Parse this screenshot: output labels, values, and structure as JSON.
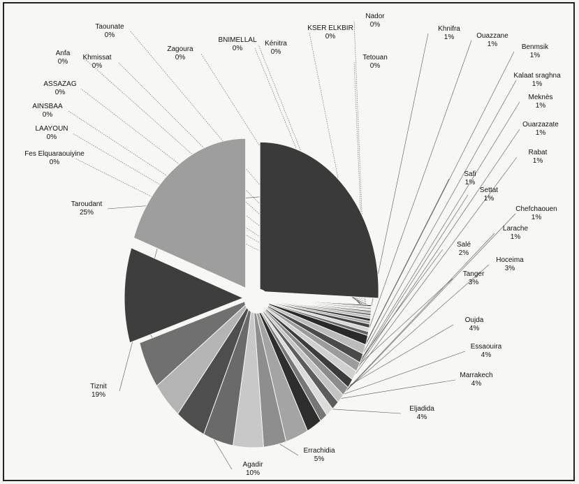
{
  "chart_data": {
    "type": "pie",
    "title": "",
    "legend": "none",
    "categories": [
      "Taroudant",
      "Fes Elquaraouiyine",
      "LAAYOUN",
      "AINSBAA",
      "ASSAZAG",
      "Anfa",
      "Khmissat",
      "Taounate",
      "Zagoura",
      "BNIMELLAL",
      "Kénitra",
      "KSER ELKBIR",
      "Nador",
      "Tetouan",
      "Khnifra",
      "Ouazzane",
      "Benmsik",
      "Kalaat sraghna",
      "Meknès",
      "Ouarzazate",
      "Rabat",
      "Safi",
      "Settat",
      "Chefchaouen",
      "Larache",
      "Salé",
      "Hoceima",
      "Tanger",
      "Oujda",
      "Essaouira",
      "Marrakech",
      "Eljadida",
      "Errachidia",
      "Agadir",
      "Tiznit"
    ],
    "values": [
      25,
      0.15,
      0.15,
      0.15,
      0.15,
      0.15,
      0.15,
      0.2,
      0.3,
      0.3,
      0.3,
      0.4,
      0.4,
      0.4,
      1,
      1,
      1,
      1,
      1,
      1,
      1,
      1,
      1,
      1,
      1,
      2,
      3,
      3,
      4,
      4,
      4,
      4,
      5,
      10,
      19
    ],
    "labels": [
      [
        "Taroudant",
        "25%"
      ],
      [
        "Fes Elquaraouiyine",
        "0%"
      ],
      [
        "LAAYOUN",
        "0%"
      ],
      [
        "AINSBAA",
        "0%"
      ],
      [
        "ASSAZAG",
        "0%"
      ],
      [
        "Anfa",
        "0%"
      ],
      [
        "Khmissat",
        "0%"
      ],
      [
        "Taounate",
        "0%"
      ],
      [
        "Zagoura",
        "0%"
      ],
      [
        "BNIMELLAL",
        "0%"
      ],
      [
        "Kénitra",
        "0%"
      ],
      [
        "KSER ELKBIR",
        "0%"
      ],
      [
        "Nador",
        "0%"
      ],
      [
        "Tetouan",
        "0%"
      ],
      [
        "Khnifra",
        "1%"
      ],
      [
        "Ouazzane",
        "1%"
      ],
      [
        "Benmsik",
        "1%"
      ],
      [
        "Kalaat sraghna",
        "1%"
      ],
      [
        "Meknès",
        "1%"
      ],
      [
        "Ouarzazate",
        "1%"
      ],
      [
        "Rabat",
        "1%"
      ],
      [
        "Safi",
        "1%"
      ],
      [
        "Settat",
        "1%"
      ],
      [
        "Chefchaouen",
        "1%"
      ],
      [
        "Larache",
        "1%"
      ],
      [
        "Salé",
        "2%"
      ],
      [
        "Hoceima",
        "3%"
      ],
      [
        "Tanger",
        "3%"
      ],
      [
        "Oujda",
        "4%"
      ],
      [
        "Essaouira",
        "4%"
      ],
      [
        "Marrakech",
        "4%"
      ],
      [
        "Eljadida",
        "4%"
      ],
      [
        "Errachidia",
        "5%"
      ],
      [
        "Agadir",
        "10%"
      ],
      [
        "Tiznit",
        "19%"
      ]
    ],
    "colors": [
      "#3a3a3a",
      "#1e1e1e",
      "#cfcfcf",
      "#7a7a7a",
      "#e0e0e0",
      "#2c2c2c",
      "#9a9a9a",
      "#555555",
      "#bdbdbd",
      "#333333",
      "#a8a8a8",
      "#444444",
      "#d6d6d6",
      "#666666",
      "#2a2a2a",
      "#bbbbbb",
      "#4a4a4a",
      "#9c9c9c",
      "#d0d0d0",
      "#3c3c3c",
      "#8c8c8c",
      "#c4c4c4",
      "#5c5c5c",
      "#dcdcdc",
      "#777777",
      "#2e2e2e",
      "#a4a4a4",
      "#8e8e8e",
      "#c8c8c8",
      "#6a6a6a",
      "#4e4e4e",
      "#b4b4b4",
      "#707070",
      "#3e3e3e",
      "#9e9e9e"
    ]
  }
}
